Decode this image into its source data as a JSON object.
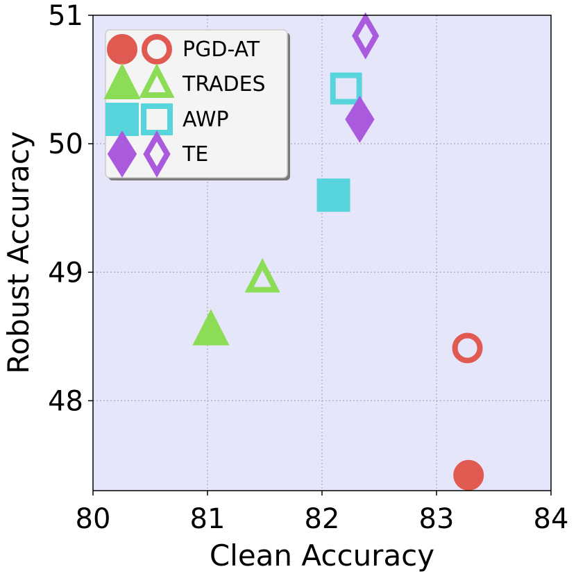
{
  "chart_data": {
    "type": "scatter",
    "title": "",
    "xlabel": "Clean Accuracy",
    "ylabel": "Robust Accuracy",
    "xlim": [
      80,
      84
    ],
    "ylim": [
      47.3,
      51
    ],
    "xticks": [
      80,
      81,
      82,
      83,
      84
    ],
    "yticks": [
      48,
      49,
      50,
      51
    ],
    "grid": true,
    "legend_position": "top-left",
    "background_color": "#e6e6fa",
    "series": [
      {
        "name": "PGD-AT",
        "color": "#e05a52",
        "shape": "circle",
        "points": [
          {
            "x": 83.28,
            "y": 47.42,
            "filled": true
          },
          {
            "x": 83.27,
            "y": 48.41,
            "filled": false
          }
        ]
      },
      {
        "name": "TRADES",
        "color": "#8ddc56",
        "shape": "triangle",
        "points": [
          {
            "x": 81.03,
            "y": 48.55,
            "filled": true
          },
          {
            "x": 81.48,
            "y": 48.95,
            "filled": false
          }
        ]
      },
      {
        "name": "AWP",
        "color": "#58d4dc",
        "shape": "square",
        "points": [
          {
            "x": 82.1,
            "y": 49.6,
            "filled": true
          },
          {
            "x": 82.21,
            "y": 50.43,
            "filled": false
          }
        ]
      },
      {
        "name": "TE",
        "color": "#a95add",
        "shape": "diamond",
        "points": [
          {
            "x": 82.33,
            "y": 50.19,
            "filled": true
          },
          {
            "x": 82.38,
            "y": 50.84,
            "filled": false
          }
        ]
      }
    ]
  }
}
